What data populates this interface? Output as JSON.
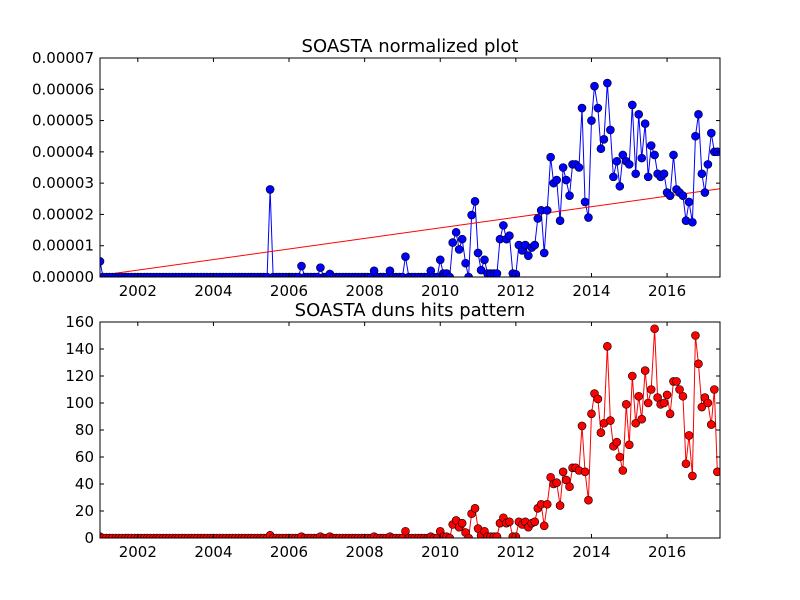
{
  "chart_data": [
    {
      "type": "line",
      "title": "SOASTA normalized plot",
      "color": "#0000ff",
      "marker_edge": "#000000",
      "xlim": [
        2001,
        2017.4
      ],
      "xticks": [
        2002,
        2004,
        2006,
        2008,
        2010,
        2012,
        2014,
        2016
      ],
      "ylim": [
        0,
        7e-05
      ],
      "yticks": [
        {
          "value": 0,
          "label": "0.00000"
        },
        {
          "value": 1e-05,
          "label": "0.00001"
        },
        {
          "value": 2e-05,
          "label": "0.00002"
        },
        {
          "value": 3e-05,
          "label": "0.00003"
        },
        {
          "value": 4e-05,
          "label": "0.00004"
        },
        {
          "value": 5e-05,
          "label": "0.00005"
        },
        {
          "value": 6e-05,
          "label": "0.00006"
        },
        {
          "value": 7e-05,
          "label": "0.00007"
        }
      ],
      "x": [
        2001,
        2001.08,
        2001.17,
        2001.25,
        2001.33,
        2001.42,
        2001.5,
        2001.58,
        2001.67,
        2001.75,
        2001.83,
        2001.92,
        2002,
        2002.08,
        2002.17,
        2002.25,
        2002.33,
        2002.42,
        2002.5,
        2002.58,
        2002.67,
        2002.75,
        2002.83,
        2002.92,
        2003,
        2003.08,
        2003.17,
        2003.25,
        2003.33,
        2003.42,
        2003.5,
        2003.58,
        2003.67,
        2003.75,
        2003.83,
        2003.92,
        2004,
        2004.08,
        2004.17,
        2004.25,
        2004.33,
        2004.42,
        2004.5,
        2004.58,
        2004.67,
        2004.75,
        2004.83,
        2004.92,
        2005,
        2005.08,
        2005.17,
        2005.25,
        2005.33,
        2005.42,
        2005.5,
        2005.58,
        2005.67,
        2005.75,
        2005.83,
        2005.92,
        2006,
        2006.08,
        2006.17,
        2006.25,
        2006.33,
        2006.42,
        2006.5,
        2006.58,
        2006.67,
        2006.75,
        2006.83,
        2006.92,
        2007,
        2007.08,
        2007.17,
        2007.25,
        2007.33,
        2007.42,
        2007.5,
        2007.58,
        2007.67,
        2007.75,
        2007.83,
        2007.92,
        2008,
        2008.08,
        2008.17,
        2008.25,
        2008.33,
        2008.42,
        2008.5,
        2008.58,
        2008.67,
        2008.75,
        2008.83,
        2008.92,
        2009,
        2009.08,
        2009.17,
        2009.25,
        2009.33,
        2009.42,
        2009.5,
        2009.58,
        2009.67,
        2009.75,
        2009.83,
        2009.92,
        2010,
        2010.08,
        2010.17,
        2010.25,
        2010.33,
        2010.42,
        2010.5,
        2010.58,
        2010.67,
        2010.75,
        2010.83,
        2010.92,
        2011,
        2011.08,
        2011.17,
        2011.25,
        2011.33,
        2011.42,
        2011.5,
        2011.58,
        2011.67,
        2011.75,
        2011.83,
        2011.92,
        2012,
        2012.08,
        2012.17,
        2012.25,
        2012.33,
        2012.42,
        2012.5,
        2012.58,
        2012.67,
        2012.75,
        2012.83,
        2012.92,
        2013,
        2013.08,
        2013.17,
        2013.25,
        2013.33,
        2013.42,
        2013.5,
        2013.58,
        2013.67,
        2013.75,
        2013.83,
        2013.92,
        2014,
        2014.08,
        2014.17,
        2014.25,
        2014.33,
        2014.42,
        2014.5,
        2014.58,
        2014.67,
        2014.75,
        2014.83,
        2014.92,
        2015,
        2015.08,
        2015.17,
        2015.25,
        2015.33,
        2015.42,
        2015.5,
        2015.58,
        2015.67,
        2015.75,
        2015.83,
        2015.92,
        2016,
        2016.08,
        2016.17,
        2016.25,
        2016.33,
        2016.42,
        2016.5,
        2016.58,
        2016.67,
        2016.75,
        2016.83,
        2016.92,
        2017,
        2017.08,
        2017.17,
        2017.25,
        2017.33
      ],
      "values": [
        5e-06,
        0,
        0,
        0,
        0,
        0,
        0,
        0,
        0,
        0,
        0,
        0,
        0,
        0,
        0,
        0,
        0,
        0,
        0,
        0,
        0,
        0,
        0,
        0,
        0,
        0,
        0,
        0,
        0,
        0,
        0,
        0,
        0,
        0,
        0,
        0,
        0,
        0,
        0,
        0,
        0,
        0,
        0,
        0,
        0,
        0,
        0,
        0,
        0,
        0,
        0,
        0,
        0,
        0,
        2.8e-05,
        0,
        0,
        0,
        0,
        0,
        0,
        0,
        0,
        0,
        3.5e-06,
        0,
        0,
        0,
        0,
        0,
        3e-06,
        0,
        0,
        1e-06,
        0,
        0,
        0,
        0,
        0,
        0,
        0,
        0,
        0,
        0,
        0,
        0,
        0,
        2e-06,
        0,
        0,
        0,
        0,
        2e-06,
        0,
        0,
        0,
        0,
        6.5e-06,
        0,
        0,
        0,
        0,
        0,
        0,
        0,
        2e-06,
        0,
        0,
        5.5e-06,
        1.1e-06,
        1.1e-06,
        0,
        1.1e-05,
        1.43e-05,
        8.8e-06,
        1.21e-05,
        4.4e-06,
        0,
        1.98e-05,
        2.42e-05,
        7.7e-06,
        2.2e-06,
        5.5e-06,
        1.1e-06,
        1.1e-06,
        1.1e-06,
        1.1e-06,
        1.21e-05,
        1.65e-05,
        1.21e-05,
        1.32e-05,
        1.1e-06,
        8.5e-07,
        1.02e-05,
        8.5e-06,
        1.02e-05,
        6.8e-06,
        9.4e-06,
        1.02e-05,
        1.87e-05,
        2.13e-05,
        7.7e-06,
        2.13e-05,
        3.83e-05,
        3e-05,
        3.1e-05,
        1.8e-05,
        3.5e-05,
        3.1e-05,
        2.6e-05,
        3.6e-05,
        3.6e-05,
        3.5e-05,
        5.4e-05,
        2.4e-05,
        1.9e-05,
        5e-05,
        6.1e-05,
        5.4e-05,
        4.1e-05,
        4.4e-05,
        6.2e-05,
        4.7e-05,
        3.2e-05,
        3.7e-05,
        2.9e-05,
        3.9e-05,
        3.7e-05,
        3.6e-05,
        5.5e-05,
        3.3e-05,
        5.2e-05,
        3.8e-05,
        4.9e-05,
        3.2e-05,
        4.2e-05,
        3.9e-05,
        3.3e-05,
        3.2e-05,
        3.3e-05,
        2.7e-05,
        2.6e-05,
        3.9e-05,
        2.8e-05,
        2.7e-05,
        2.6e-05,
        1.8e-05,
        2.4e-05,
        1.75e-05,
        4.5e-05,
        5.2e-05,
        3.3e-05,
        2.7e-05,
        3.6e-05,
        4.6e-05,
        4e-05,
        4e-05
      ],
      "fit": {
        "color": "#ff0000",
        "x": [
          2001,
          2017.4
        ],
        "values": [
          5e-07,
          2.82e-05
        ]
      }
    },
    {
      "type": "line",
      "title": "SOASTA duns hits pattern",
      "color": "#ff0000",
      "marker_edge": "#000000",
      "xlim": [
        2001,
        2017.4
      ],
      "xticks": [
        2002,
        2004,
        2006,
        2008,
        2010,
        2012,
        2014,
        2016
      ],
      "ylim": [
        0,
        160
      ],
      "yticks": [
        0,
        20,
        40,
        60,
        80,
        100,
        120,
        140,
        160
      ],
      "x": [
        2001,
        2001.08,
        2001.17,
        2001.25,
        2001.33,
        2001.42,
        2001.5,
        2001.58,
        2001.67,
        2001.75,
        2001.83,
        2001.92,
        2002,
        2002.08,
        2002.17,
        2002.25,
        2002.33,
        2002.42,
        2002.5,
        2002.58,
        2002.67,
        2002.75,
        2002.83,
        2002.92,
        2003,
        2003.08,
        2003.17,
        2003.25,
        2003.33,
        2003.42,
        2003.5,
        2003.58,
        2003.67,
        2003.75,
        2003.83,
        2003.92,
        2004,
        2004.08,
        2004.17,
        2004.25,
        2004.33,
        2004.42,
        2004.5,
        2004.58,
        2004.67,
        2004.75,
        2004.83,
        2004.92,
        2005,
        2005.08,
        2005.17,
        2005.25,
        2005.33,
        2005.42,
        2005.5,
        2005.58,
        2005.67,
        2005.75,
        2005.83,
        2005.92,
        2006,
        2006.08,
        2006.17,
        2006.25,
        2006.33,
        2006.42,
        2006.5,
        2006.58,
        2006.67,
        2006.75,
        2006.83,
        2006.92,
        2007,
        2007.08,
        2007.17,
        2007.25,
        2007.33,
        2007.42,
        2007.5,
        2007.58,
        2007.67,
        2007.75,
        2007.83,
        2007.92,
        2008,
        2008.08,
        2008.17,
        2008.25,
        2008.33,
        2008.42,
        2008.5,
        2008.58,
        2008.67,
        2008.75,
        2008.83,
        2008.92,
        2009,
        2009.08,
        2009.17,
        2009.25,
        2009.33,
        2009.42,
        2009.5,
        2009.58,
        2009.67,
        2009.75,
        2009.83,
        2009.92,
        2010,
        2010.08,
        2010.17,
        2010.25,
        2010.33,
        2010.42,
        2010.5,
        2010.58,
        2010.67,
        2010.75,
        2010.83,
        2010.92,
        2011,
        2011.08,
        2011.17,
        2011.25,
        2011.33,
        2011.42,
        2011.5,
        2011.58,
        2011.67,
        2011.75,
        2011.83,
        2011.92,
        2012,
        2012.08,
        2012.17,
        2012.25,
        2012.33,
        2012.42,
        2012.5,
        2012.58,
        2012.67,
        2012.75,
        2012.83,
        2012.92,
        2013,
        2013.08,
        2013.17,
        2013.25,
        2013.33,
        2013.42,
        2013.5,
        2013.58,
        2013.67,
        2013.75,
        2013.83,
        2013.92,
        2014,
        2014.08,
        2014.17,
        2014.25,
        2014.33,
        2014.42,
        2014.5,
        2014.58,
        2014.67,
        2014.75,
        2014.83,
        2014.92,
        2015,
        2015.08,
        2015.17,
        2015.25,
        2015.33,
        2015.42,
        2015.5,
        2015.58,
        2015.67,
        2015.75,
        2015.83,
        2015.92,
        2016,
        2016.08,
        2016.17,
        2016.25,
        2016.33,
        2016.42,
        2016.5,
        2016.58,
        2016.67,
        2016.75,
        2016.83,
        2016.92,
        2017,
        2017.08,
        2017.17,
        2017.25,
        2017.33
      ],
      "values": [
        1,
        0,
        0,
        0,
        0,
        0,
        0,
        0,
        0,
        0,
        0,
        0,
        0,
        0,
        0,
        0,
        0,
        0,
        0,
        0,
        0,
        0,
        0,
        0,
        0,
        0,
        0,
        0,
        0,
        0,
        0,
        0,
        0,
        0,
        0,
        0,
        0,
        0,
        0,
        0,
        0,
        0,
        0,
        0,
        0,
        0,
        0,
        0,
        0,
        0,
        0,
        0,
        0,
        0,
        2,
        0,
        0,
        0,
        0,
        0,
        0,
        0,
        0,
        0,
        1,
        0,
        0,
        0,
        0,
        0,
        1,
        0,
        0,
        1,
        0,
        0,
        0,
        0,
        0,
        0,
        0,
        0,
        0,
        0,
        0,
        0,
        0,
        1,
        0,
        0,
        0,
        0,
        1,
        0,
        0,
        0,
        0,
        5,
        0,
        0,
        0,
        0,
        0,
        0,
        0,
        1,
        0,
        0,
        5,
        1,
        1,
        0,
        10,
        13,
        8,
        11,
        4,
        0,
        18,
        22,
        7,
        2,
        5,
        1,
        1,
        1,
        1,
        11,
        15,
        11,
        12,
        1,
        1,
        12,
        10,
        12,
        8,
        11,
        12,
        22,
        25,
        9,
        25,
        45,
        40,
        41,
        24,
        49,
        43,
        38,
        52,
        52,
        50,
        83,
        49,
        28,
        92,
        107,
        103,
        78,
        85,
        142,
        87,
        68,
        71,
        60,
        50,
        99,
        69,
        120,
        85,
        105,
        88,
        124,
        100,
        110,
        155,
        104,
        99,
        100,
        106,
        92,
        116,
        116,
        110,
        105,
        55,
        76,
        46,
        150,
        129,
        97,
        104,
        100,
        84,
        110,
        49
      ]
    }
  ]
}
